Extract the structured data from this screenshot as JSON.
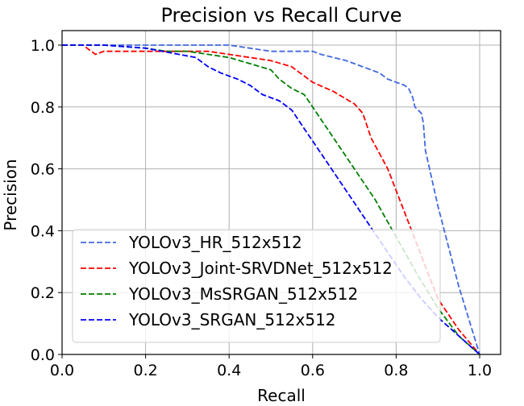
{
  "chart_data": {
    "type": "line",
    "title": "Precision vs Recall Curve",
    "xlabel": "Recall",
    "ylabel": "Precision",
    "xlim": [
      0.0,
      1.0
    ],
    "ylim": [
      0.0,
      1.0
    ],
    "xticks": [
      "0.0",
      "0.2",
      "0.4",
      "0.6",
      "0.8",
      "1.0"
    ],
    "yticks": [
      "0.0",
      "0.2",
      "0.4",
      "0.6",
      "0.8",
      "1.0"
    ],
    "grid": true,
    "legend_position": "lower-left",
    "series": [
      {
        "name": "YOLOv3_HR_512x512",
        "color": "#4169e1",
        "style": "dashed",
        "x": [
          0.0,
          0.1,
          0.2,
          0.3,
          0.4,
          0.45,
          0.5,
          0.55,
          0.6,
          0.62,
          0.65,
          0.68,
          0.7,
          0.72,
          0.74,
          0.76,
          0.78,
          0.8,
          0.82,
          0.83,
          0.84,
          0.845,
          0.86,
          0.865,
          0.87,
          0.9,
          0.95,
          1.0
        ],
        "y": [
          1.0,
          1.0,
          1.0,
          1.0,
          1.0,
          0.99,
          0.98,
          0.98,
          0.98,
          0.97,
          0.96,
          0.95,
          0.94,
          0.93,
          0.92,
          0.91,
          0.89,
          0.88,
          0.87,
          0.86,
          0.83,
          0.8,
          0.78,
          0.75,
          0.66,
          0.48,
          0.22,
          0.0
        ]
      },
      {
        "name": "YOLOv3_Joint-SRVDNet_512x512",
        "color": "#ff0000",
        "style": "dashed",
        "x": [
          0.0,
          0.05,
          0.08,
          0.1,
          0.15,
          0.2,
          0.25,
          0.3,
          0.35,
          0.4,
          0.45,
          0.5,
          0.55,
          0.58,
          0.6,
          0.65,
          0.7,
          0.72,
          0.74,
          0.78,
          0.82,
          0.86,
          0.9,
          0.95,
          1.0
        ],
        "y": [
          1.0,
          1.0,
          0.97,
          0.98,
          0.98,
          0.98,
          0.98,
          0.98,
          0.98,
          0.97,
          0.96,
          0.95,
          0.93,
          0.9,
          0.88,
          0.85,
          0.81,
          0.78,
          0.7,
          0.6,
          0.46,
          0.32,
          0.18,
          0.08,
          0.0
        ]
      },
      {
        "name": "YOLOv3_MsSRGAN_512x512",
        "color": "#008000",
        "style": "dashed",
        "x": [
          0.0,
          0.1,
          0.2,
          0.25,
          0.3,
          0.35,
          0.4,
          0.45,
          0.5,
          0.52,
          0.55,
          0.58,
          0.6,
          0.65,
          0.7,
          0.75,
          0.8,
          0.85,
          0.9,
          0.95,
          1.0
        ],
        "y": [
          1.0,
          1.0,
          0.99,
          0.98,
          0.98,
          0.97,
          0.96,
          0.94,
          0.92,
          0.89,
          0.86,
          0.84,
          0.8,
          0.7,
          0.6,
          0.5,
          0.38,
          0.26,
          0.15,
          0.06,
          0.0
        ]
      },
      {
        "name": "YOLOv3_SRGAN_512x512",
        "color": "#0000ff",
        "style": "dashed",
        "x": [
          0.0,
          0.1,
          0.2,
          0.28,
          0.32,
          0.35,
          0.38,
          0.42,
          0.45,
          0.48,
          0.52,
          0.55,
          0.58,
          0.62,
          0.66,
          0.7,
          0.74,
          0.78,
          0.82,
          0.86,
          0.9,
          0.95,
          1.0
        ],
        "y": [
          1.0,
          1.0,
          0.99,
          0.97,
          0.96,
          0.93,
          0.91,
          0.89,
          0.87,
          0.84,
          0.82,
          0.79,
          0.73,
          0.65,
          0.57,
          0.49,
          0.41,
          0.33,
          0.25,
          0.18,
          0.12,
          0.06,
          0.0
        ]
      }
    ]
  }
}
